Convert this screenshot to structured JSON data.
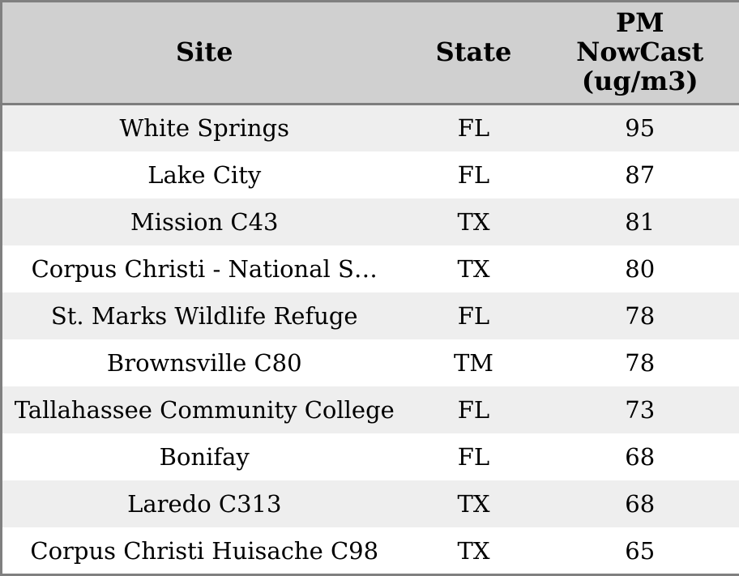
{
  "colors": {
    "header_bg": "#d0d0d0",
    "header_divider": "#7d7d7d",
    "outer_border": "#808080",
    "row_stripe_bg": "#eeeeee",
    "row_bg": "#ffffff",
    "text": "#000000"
  },
  "table": {
    "columns": [
      {
        "id": "site",
        "label": "Site"
      },
      {
        "id": "state",
        "label": "State"
      },
      {
        "id": "pm",
        "label": "PM\nNowCast\n(ug/m3)"
      }
    ],
    "rows": [
      {
        "site": "White Springs",
        "state": "FL",
        "pm": "95"
      },
      {
        "site": "Lake City",
        "state": "FL",
        "pm": "87"
      },
      {
        "site": "Mission C43",
        "state": "TX",
        "pm": "81"
      },
      {
        "site": "Corpus Christi - National S…",
        "state": "TX",
        "pm": "80"
      },
      {
        "site": "St. Marks Wildlife Refuge",
        "state": "FL",
        "pm": "78"
      },
      {
        "site": "Brownsville C80",
        "state": "TM",
        "pm": "78"
      },
      {
        "site": "Tallahassee Community College",
        "state": "FL",
        "pm": "73"
      },
      {
        "site": "Bonifay",
        "state": "FL",
        "pm": "68"
      },
      {
        "site": "Laredo C313",
        "state": "TX",
        "pm": "68"
      },
      {
        "site": "Corpus Christi Huisache C98",
        "state": "TX",
        "pm": "65"
      }
    ]
  },
  "chart_data": {
    "type": "table",
    "title": "PM NowCast (ug/m3)",
    "columns": [
      "Site",
      "State",
      "PM NowCast (ug/m3)"
    ],
    "rows": [
      [
        "White Springs",
        "FL",
        95
      ],
      [
        "Lake City",
        "FL",
        87
      ],
      [
        "Mission C43",
        "TX",
        81
      ],
      [
        "Corpus Christi - National S…",
        "TX",
        80
      ],
      [
        "St. Marks Wildlife Refuge",
        "FL",
        78
      ],
      [
        "Brownsville C80",
        "TM",
        78
      ],
      [
        "Tallahassee Community College",
        "FL",
        73
      ],
      [
        "Bonifay",
        "FL",
        68
      ],
      [
        "Laredo C313",
        "TX",
        68
      ],
      [
        "Corpus Christi Huisache C98",
        "TX",
        65
      ]
    ],
    "layout": {
      "header_style": "bold, gray background",
      "row_striping": "alternating light-gray/white",
      "alignment": "all columns centered"
    }
  }
}
